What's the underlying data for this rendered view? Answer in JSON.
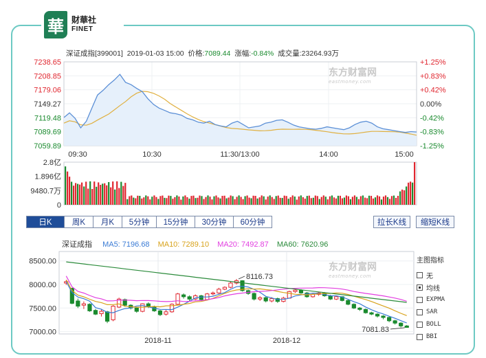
{
  "brand": {
    "mark": "華",
    "name_cn": "财華社",
    "name_en": "FINET"
  },
  "header": {
    "name": "深证成指[399001]",
    "datetime": "2019-01-03 15:00",
    "price_label": "价格:",
    "price": "7089.44",
    "change_label": "涨幅:",
    "change": "-0.84%",
    "volume_label": "成交量:",
    "volume": "23264.93万"
  },
  "watermark": {
    "cn": "东方财富网",
    "en": "eastmoney.com"
  },
  "intraday": {
    "price_ticks": [
      "7238.65",
      "7208.85",
      "7179.06",
      "7149.27",
      "7119.48",
      "7089.69",
      "7059.89"
    ],
    "pct_ticks": [
      "+1.25%",
      "+0.83%",
      "+0.42%",
      "0.00%",
      "-0.42%",
      "-0.83%",
      "-1.25%"
    ],
    "time_ticks": [
      "09:30",
      "10:30",
      "11:30/13:00",
      "14:00",
      "15:00"
    ],
    "volume_ticks": [
      "2.8亿",
      "1.896亿",
      "9480.7万",
      "0"
    ],
    "colors": {
      "price_line": "#5b8fd6",
      "avg_line": "#e0b040",
      "fill": "#e6f0fb",
      "up": "#e0262f",
      "down": "#1a8a2e"
    }
  },
  "tabs": [
    "日K",
    "周K",
    "月K",
    "5分钟",
    "15分钟",
    "30分钟",
    "60分钟"
  ],
  "active_tab": "日K",
  "buttons": {
    "expand": "拉长K线",
    "shrink": "缩短K线"
  },
  "daily": {
    "name": "深证成指",
    "ma": [
      {
        "label": "MA5: 7196.68",
        "color": "#3a7bd5"
      },
      {
        "label": "MA10: 7289.10",
        "color": "#d8a21a"
      },
      {
        "label": "MA20: 7492.87",
        "color": "#e23ee0"
      },
      {
        "label": "MA60: 7620.96",
        "color": "#2a8a3a"
      }
    ],
    "y_ticks": [
      "8500.00",
      "8000.00",
      "7500.00",
      "7000.00"
    ],
    "x_ticks": [
      "2018-11",
      "2018-12"
    ],
    "high_label": "8116.73",
    "low_label": "7081.83"
  },
  "side_panel": {
    "title": "主图指标",
    "options": [
      {
        "label": "无",
        "checked": false
      },
      {
        "label": "均线",
        "checked": true
      },
      {
        "label": "EXPMA",
        "checked": false
      },
      {
        "label": "SAR",
        "checked": false
      },
      {
        "label": "BOLL",
        "checked": false
      },
      {
        "label": "BBI",
        "checked": false
      }
    ]
  }
}
